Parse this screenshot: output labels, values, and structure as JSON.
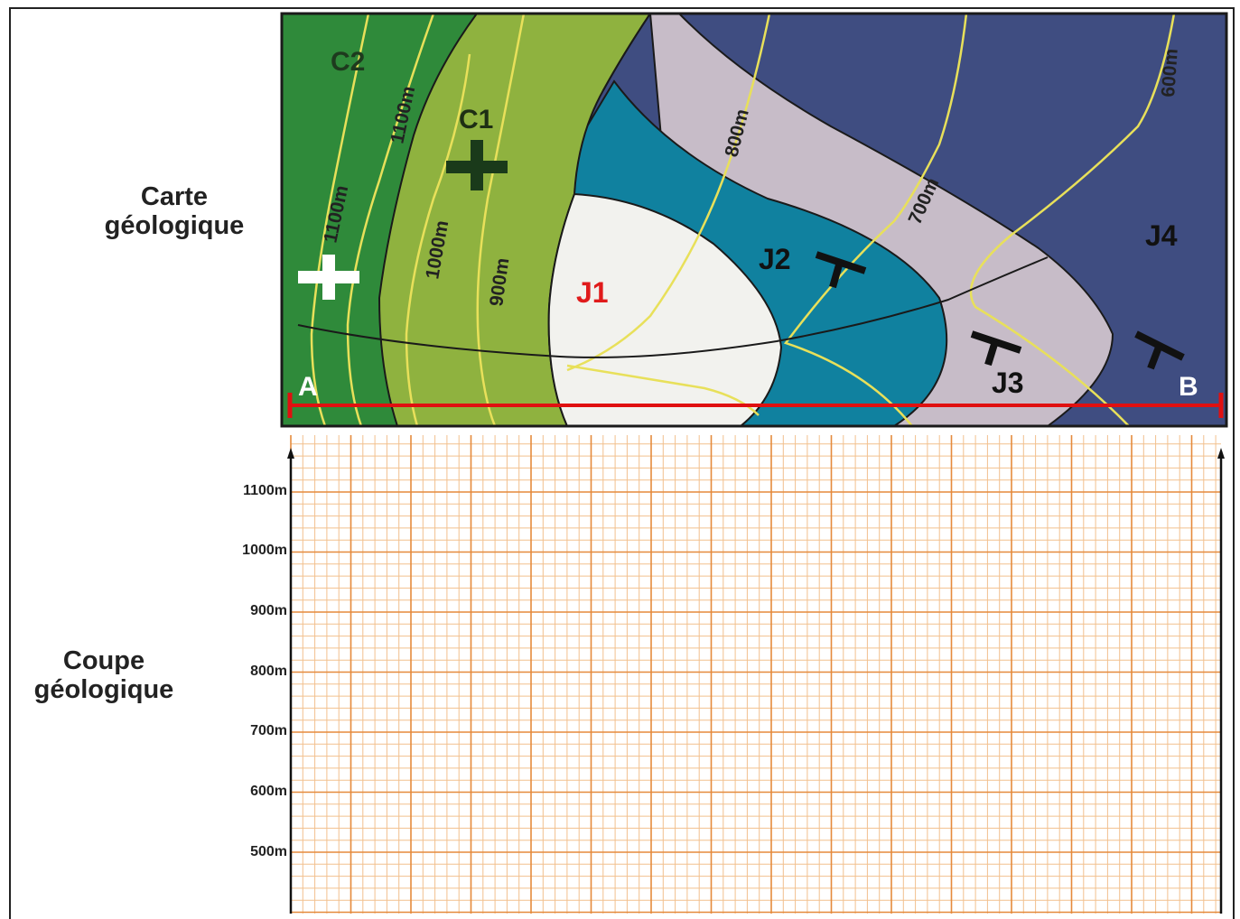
{
  "labels": {
    "map_title_line1": "Carte",
    "map_title_line2": "géologique",
    "section_title_line1": "Coupe",
    "section_title_line2": "géologique"
  },
  "map": {
    "formations": [
      "C2",
      "C1",
      "J1",
      "J2",
      "J3",
      "J4"
    ],
    "contours": [
      "1100m",
      "1100m",
      "1000m",
      "900m",
      "800m",
      "700m",
      "600m"
    ],
    "section_endpoints": [
      "A",
      "B"
    ],
    "colors": {
      "C2": "#2f8a3a",
      "C1": "#8fb23f",
      "J1": "#f2f2ee",
      "J2": "#10819f",
      "J3": "#c7bcc8",
      "J4": "#3f4d81",
      "contour": "#e8e05a",
      "section_line": "#e01010",
      "J1_label": "#e01b1b"
    }
  },
  "section_grid": {
    "y_labels": [
      "1100m",
      "1000m",
      "900m",
      "800m",
      "700m",
      "600m",
      "500m"
    ],
    "colors": {
      "minor": "#f0b87a",
      "major": "#e07a2a"
    }
  }
}
